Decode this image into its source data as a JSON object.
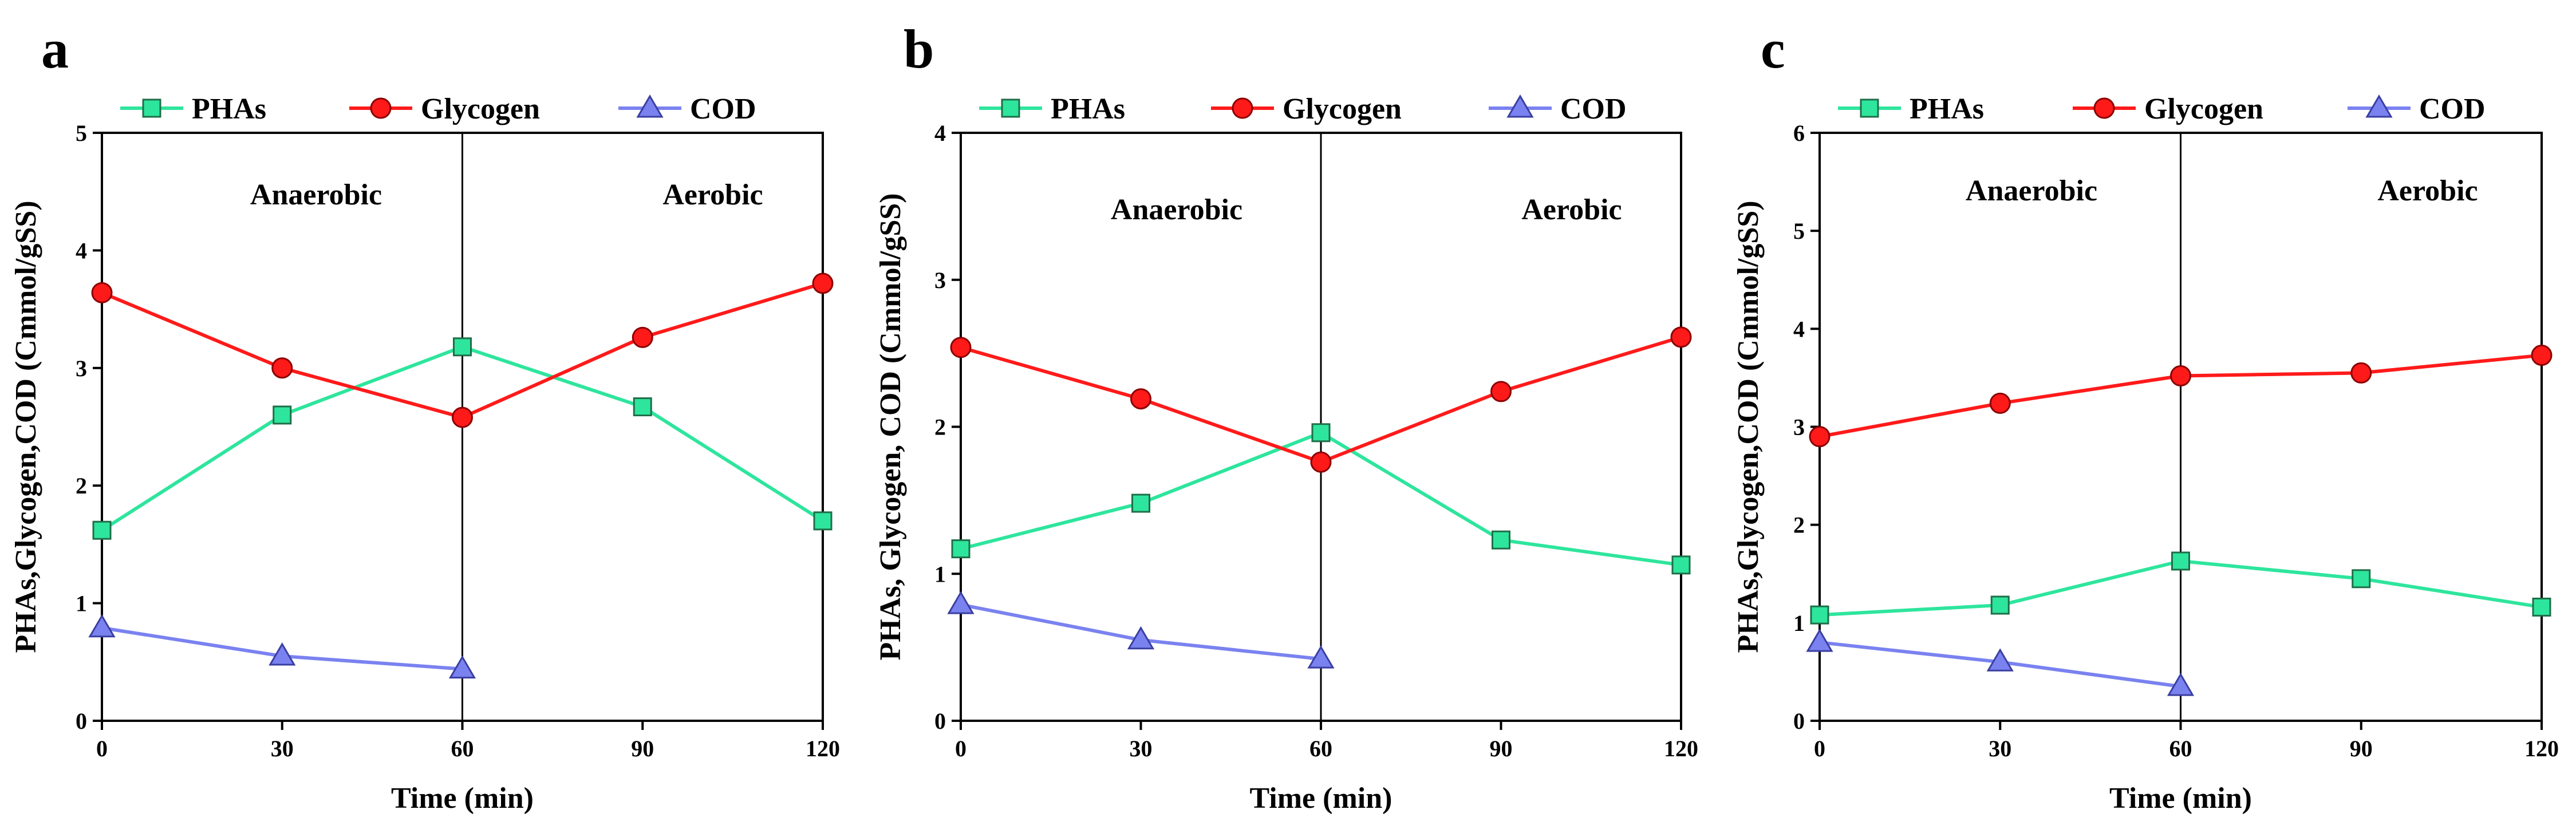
{
  "chart_data": [
    {
      "type": "line",
      "panel_label": "a",
      "xlabel": "Time (min)",
      "ylabel": "PHAs,Glycogen,COD (Cmmol/gSS)",
      "xlim": [
        0,
        120
      ],
      "ylim": [
        0,
        5
      ],
      "xticks": [
        0,
        30,
        60,
        90,
        120
      ],
      "yticks": [
        0,
        1,
        2,
        3,
        4,
        5
      ],
      "divider_x": 60,
      "phases": [
        {
          "label": "Anaerobic"
        },
        {
          "label": "Aerobic"
        }
      ],
      "series": [
        {
          "name": "PHAs",
          "marker": "square",
          "color": "#2ee59d",
          "x": [
            0,
            30,
            60,
            90,
            120
          ],
          "values": [
            1.62,
            2.6,
            3.18,
            2.67,
            1.7
          ]
        },
        {
          "name": "Glycogen",
          "marker": "circle",
          "color": "#ff1a1a",
          "x": [
            0,
            30,
            60,
            90,
            120
          ],
          "values": [
            3.64,
            3.0,
            2.58,
            3.26,
            3.72
          ]
        },
        {
          "name": "COD",
          "marker": "triangle",
          "color": "#7a82f0",
          "x": [
            0,
            30,
            60
          ],
          "values": [
            0.79,
            0.55,
            0.44
          ]
        }
      ]
    },
    {
      "type": "line",
      "panel_label": "b",
      "xlabel": "Time (min)",
      "ylabel": "PHAs, Glycogen, COD (Cmmol/gSS)",
      "xlim": [
        0,
        120
      ],
      "ylim": [
        0,
        4
      ],
      "xticks": [
        0,
        30,
        60,
        90,
        120
      ],
      "yticks": [
        0,
        1,
        2,
        3,
        4
      ],
      "divider_x": 60,
      "phases": [
        {
          "label": "Anaerobic"
        },
        {
          "label": "Aerobic"
        }
      ],
      "series": [
        {
          "name": "PHAs",
          "marker": "square",
          "color": "#2ee59d",
          "x": [
            0,
            30,
            60,
            90,
            120
          ],
          "values": [
            1.17,
            1.48,
            1.96,
            1.23,
            1.06
          ]
        },
        {
          "name": "Glycogen",
          "marker": "circle",
          "color": "#ff1a1a",
          "x": [
            0,
            30,
            60,
            90,
            120
          ],
          "values": [
            2.54,
            2.19,
            1.76,
            2.24,
            2.61
          ]
        },
        {
          "name": "COD",
          "marker": "triangle",
          "color": "#7a82f0",
          "x": [
            0,
            30,
            60
          ],
          "values": [
            0.79,
            0.55,
            0.42
          ]
        }
      ]
    },
    {
      "type": "line",
      "panel_label": "c",
      "xlabel": "Time (min)",
      "ylabel": "PHAs,Glycogen,COD (Cmmol/gSS)",
      "xlim": [
        0,
        120
      ],
      "ylim": [
        0,
        6
      ],
      "xticks": [
        0,
        30,
        60,
        90,
        120
      ],
      "yticks": [
        0,
        1,
        2,
        3,
        4,
        5,
        6
      ],
      "divider_x": 60,
      "phases": [
        {
          "label": "Anaerobic"
        },
        {
          "label": "Aerobic"
        }
      ],
      "series": [
        {
          "name": "PHAs",
          "marker": "square",
          "color": "#2ee59d",
          "x": [
            0,
            30,
            60,
            90,
            120
          ],
          "values": [
            1.08,
            1.18,
            1.63,
            1.45,
            1.16
          ]
        },
        {
          "name": "Glycogen",
          "marker": "circle",
          "color": "#ff1a1a",
          "x": [
            0,
            30,
            60,
            90,
            120
          ],
          "values": [
            2.9,
            3.24,
            3.52,
            3.55,
            3.73
          ]
        },
        {
          "name": "COD",
          "marker": "triangle",
          "color": "#7a82f0",
          "x": [
            0,
            30,
            60
          ],
          "values": [
            0.8,
            0.6,
            0.35
          ]
        }
      ]
    }
  ]
}
